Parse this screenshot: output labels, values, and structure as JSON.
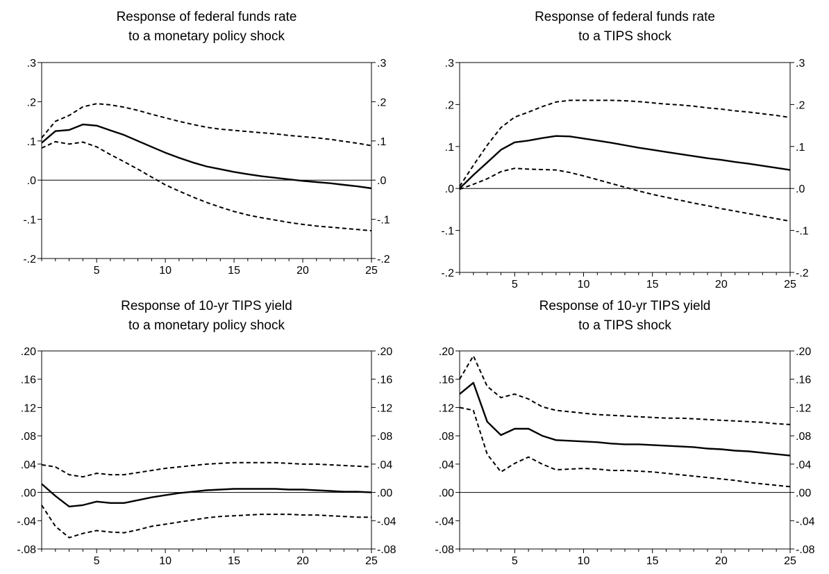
{
  "chart_data": [
    {
      "type": "line",
      "title_lines": [
        "Response of federal funds rate",
        "to a monetary policy shock"
      ],
      "x": [
        1,
        2,
        3,
        4,
        5,
        6,
        7,
        8,
        9,
        10,
        11,
        12,
        13,
        14,
        15,
        16,
        17,
        18,
        19,
        20,
        21,
        22,
        23,
        24,
        25
      ],
      "xlim": [
        1,
        25
      ],
      "xticks": [
        5,
        10,
        15,
        20,
        25
      ],
      "ylim": [
        -0.2,
        0.3
      ],
      "yticks": [
        -0.2,
        -0.1,
        0.0,
        0.1,
        0.2,
        0.3
      ],
      "ytick_labels": [
        "-.2",
        "-.1",
        ".0",
        ".1",
        ".2",
        ".3"
      ],
      "zero_line": true,
      "series": [
        {
          "style": "solid",
          "values": [
            0.095,
            0.125,
            0.128,
            0.142,
            0.139,
            0.127,
            0.115,
            0.1,
            0.085,
            0.07,
            0.057,
            0.045,
            0.035,
            0.028,
            0.021,
            0.015,
            0.01,
            0.006,
            0.002,
            -0.002,
            -0.005,
            -0.008,
            -0.012,
            -0.016,
            -0.021
          ]
        },
        {
          "style": "dashed",
          "values": [
            0.108,
            0.15,
            0.165,
            0.187,
            0.195,
            0.192,
            0.186,
            0.178,
            0.168,
            0.159,
            0.15,
            0.142,
            0.135,
            0.13,
            0.127,
            0.124,
            0.121,
            0.118,
            0.114,
            0.111,
            0.108,
            0.104,
            0.099,
            0.094,
            0.088
          ]
        },
        {
          "style": "dashed",
          "values": [
            0.082,
            0.098,
            0.092,
            0.097,
            0.085,
            0.065,
            0.047,
            0.028,
            0.008,
            -0.012,
            -0.028,
            -0.043,
            -0.057,
            -0.069,
            -0.08,
            -0.089,
            -0.096,
            -0.102,
            -0.108,
            -0.113,
            -0.117,
            -0.12,
            -0.123,
            -0.126,
            -0.129
          ]
        }
      ]
    },
    {
      "type": "line",
      "title_lines": [
        "Response of federal funds rate",
        "to a TIPS shock"
      ],
      "x": [
        1,
        2,
        3,
        4,
        5,
        6,
        7,
        8,
        9,
        10,
        11,
        12,
        13,
        14,
        15,
        16,
        17,
        18,
        19,
        20,
        21,
        22,
        23,
        24,
        25
      ],
      "xlim": [
        1,
        25
      ],
      "xticks": [
        5,
        10,
        15,
        20,
        25
      ],
      "ylim": [
        -0.2,
        0.3
      ],
      "yticks": [
        -0.2,
        -0.1,
        0.0,
        0.1,
        0.2,
        0.3
      ],
      "ytick_labels": [
        "-.2",
        "-.1",
        ".0",
        ".1",
        ".2",
        ".3"
      ],
      "zero_line": true,
      "series": [
        {
          "style": "solid",
          "values": [
            0.0,
            0.032,
            0.062,
            0.092,
            0.11,
            0.114,
            0.12,
            0.125,
            0.124,
            0.119,
            0.114,
            0.109,
            0.103,
            0.097,
            0.092,
            0.087,
            0.082,
            0.077,
            0.072,
            0.068,
            0.063,
            0.059,
            0.054,
            0.049,
            0.044
          ]
        },
        {
          "style": "dashed",
          "values": [
            0.005,
            0.055,
            0.103,
            0.145,
            0.17,
            0.182,
            0.195,
            0.206,
            0.21,
            0.21,
            0.21,
            0.21,
            0.209,
            0.207,
            0.204,
            0.201,
            0.199,
            0.196,
            0.192,
            0.189,
            0.185,
            0.182,
            0.178,
            0.174,
            0.169
          ]
        },
        {
          "style": "dashed",
          "values": [
            -0.002,
            0.01,
            0.023,
            0.04,
            0.048,
            0.046,
            0.045,
            0.044,
            0.038,
            0.03,
            0.021,
            0.012,
            0.003,
            -0.006,
            -0.014,
            -0.021,
            -0.028,
            -0.035,
            -0.041,
            -0.048,
            -0.054,
            -0.06,
            -0.066,
            -0.072,
            -0.078
          ]
        }
      ]
    },
    {
      "type": "line",
      "title_lines": [
        "Response of 10-yr TIPS yield",
        "to a monetary policy shock"
      ],
      "x": [
        1,
        2,
        3,
        4,
        5,
        6,
        7,
        8,
        9,
        10,
        11,
        12,
        13,
        14,
        15,
        16,
        17,
        18,
        19,
        20,
        21,
        22,
        23,
        24,
        25
      ],
      "xlim": [
        1,
        25
      ],
      "xticks": [
        5,
        10,
        15,
        20,
        25
      ],
      "ylim": [
        -0.08,
        0.2
      ],
      "yticks": [
        -0.08,
        -0.04,
        0.0,
        0.04,
        0.08,
        0.12,
        0.16,
        0.2
      ],
      "ytick_labels": [
        "-.08",
        "-.04",
        ".00",
        ".04",
        ".08",
        ".12",
        ".16",
        ".20"
      ],
      "zero_line": true,
      "series": [
        {
          "style": "solid",
          "values": [
            0.012,
            -0.005,
            -0.02,
            -0.018,
            -0.013,
            -0.015,
            -0.015,
            -0.011,
            -0.007,
            -0.004,
            -0.001,
            0.001,
            0.003,
            0.004,
            0.005,
            0.005,
            0.005,
            0.005,
            0.004,
            0.004,
            0.003,
            0.002,
            0.001,
            0.001,
            0.0
          ]
        },
        {
          "style": "dashed",
          "values": [
            0.039,
            0.036,
            0.025,
            0.022,
            0.027,
            0.025,
            0.025,
            0.028,
            0.031,
            0.034,
            0.036,
            0.038,
            0.04,
            0.041,
            0.042,
            0.042,
            0.042,
            0.042,
            0.041,
            0.04,
            0.04,
            0.039,
            0.038,
            0.037,
            0.036
          ]
        },
        {
          "style": "dashed",
          "values": [
            -0.018,
            -0.048,
            -0.064,
            -0.058,
            -0.054,
            -0.056,
            -0.057,
            -0.053,
            -0.048,
            -0.045,
            -0.042,
            -0.039,
            -0.036,
            -0.034,
            -0.033,
            -0.032,
            -0.031,
            -0.031,
            -0.031,
            -0.032,
            -0.032,
            -0.033,
            -0.034,
            -0.035,
            -0.035
          ]
        }
      ]
    },
    {
      "type": "line",
      "title_lines": [
        "Response of 10-yr TIPS yield",
        "to a TIPS shock"
      ],
      "x": [
        1,
        2,
        3,
        4,
        5,
        6,
        7,
        8,
        9,
        10,
        11,
        12,
        13,
        14,
        15,
        16,
        17,
        18,
        19,
        20,
        21,
        22,
        23,
        24,
        25
      ],
      "xlim": [
        1,
        25
      ],
      "xticks": [
        5,
        10,
        15,
        20,
        25
      ],
      "ylim": [
        -0.08,
        0.2
      ],
      "yticks": [
        -0.08,
        -0.04,
        0.0,
        0.04,
        0.08,
        0.12,
        0.16,
        0.2
      ],
      "ytick_labels": [
        "-.08",
        "-.04",
        ".00",
        ".04",
        ".08",
        ".12",
        ".16",
        ".20"
      ],
      "zero_line": true,
      "series": [
        {
          "style": "solid",
          "values": [
            0.139,
            0.155,
            0.1,
            0.081,
            0.09,
            0.09,
            0.08,
            0.074,
            0.073,
            0.072,
            0.071,
            0.069,
            0.068,
            0.068,
            0.067,
            0.066,
            0.065,
            0.064,
            0.062,
            0.061,
            0.059,
            0.058,
            0.056,
            0.054,
            0.052
          ]
        },
        {
          "style": "dashed",
          "values": [
            0.16,
            0.193,
            0.15,
            0.134,
            0.139,
            0.132,
            0.121,
            0.116,
            0.114,
            0.112,
            0.11,
            0.109,
            0.108,
            0.107,
            0.106,
            0.105,
            0.105,
            0.104,
            0.103,
            0.102,
            0.101,
            0.1,
            0.099,
            0.097,
            0.096
          ]
        },
        {
          "style": "dashed",
          "values": [
            0.12,
            0.116,
            0.054,
            0.029,
            0.041,
            0.05,
            0.04,
            0.032,
            0.033,
            0.034,
            0.033,
            0.031,
            0.031,
            0.03,
            0.029,
            0.027,
            0.025,
            0.023,
            0.021,
            0.019,
            0.017,
            0.014,
            0.012,
            0.01,
            0.008
          ]
        }
      ]
    }
  ]
}
